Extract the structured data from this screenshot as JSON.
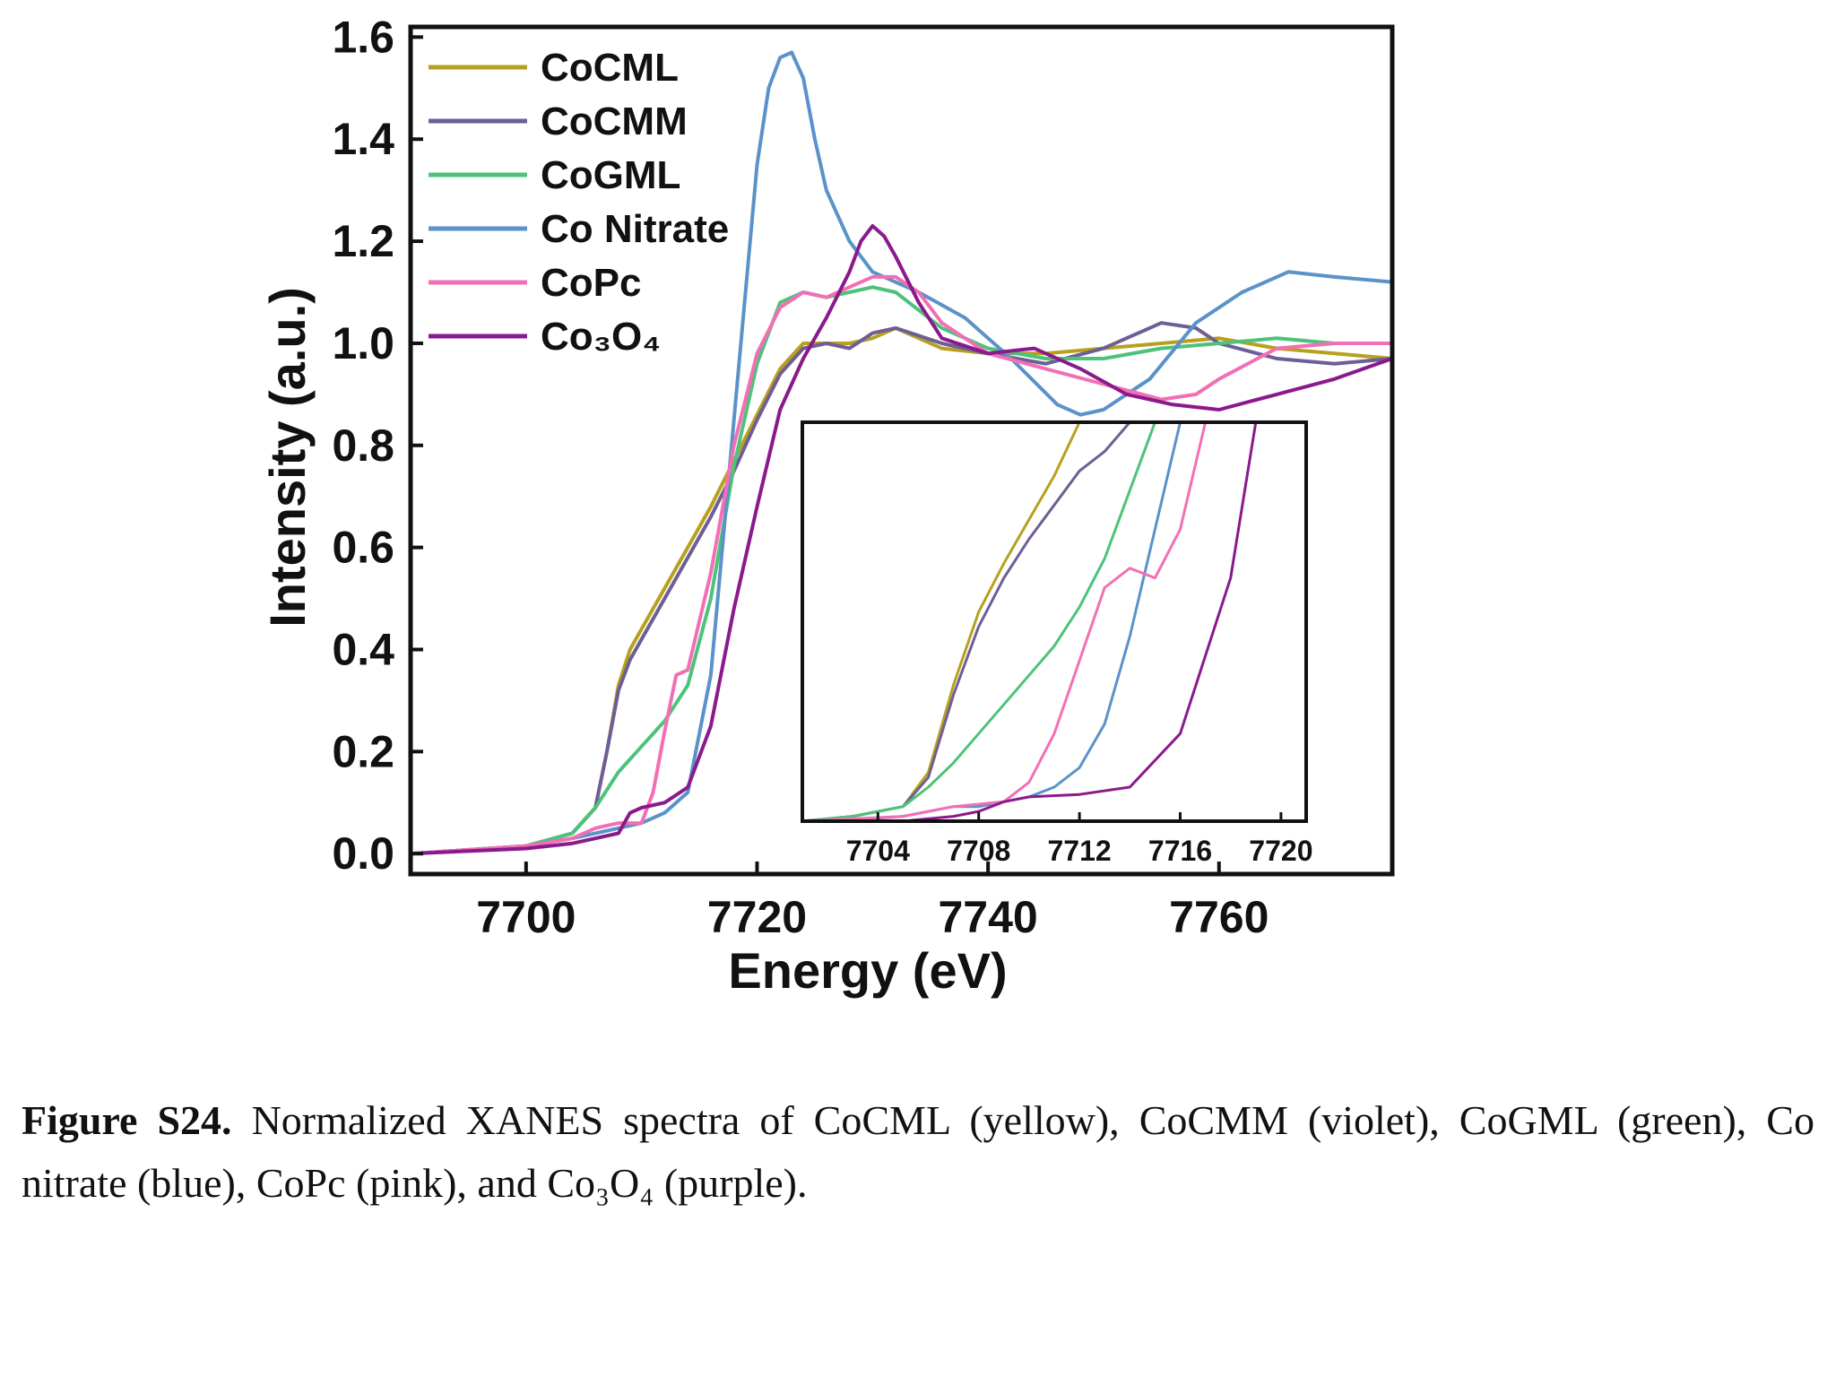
{
  "chart_data": {
    "type": "line",
    "xlabel": "Energy (eV)",
    "ylabel": "Intensity (a.u.)",
    "xlim": [
      7690,
      7775
    ],
    "ylim": [
      -0.04,
      1.62
    ],
    "x_ticks": [
      7700,
      7720,
      7740,
      7760
    ],
    "y_ticks": [
      0.0,
      0.2,
      0.4,
      0.6,
      0.8,
      1.0,
      1.2,
      1.4,
      1.6
    ],
    "grid": false,
    "legend_position": "top-left",
    "series": [
      {
        "name": "CoCML",
        "color": "#b8a01e",
        "x": [
          7690,
          7700,
          7704,
          7706,
          7707,
          7708,
          7709,
          7710,
          7712,
          7714,
          7716,
          7718,
          7720,
          7722,
          7724,
          7726,
          7728,
          7730,
          7732,
          7736,
          7740,
          7745,
          7750,
          7755,
          7760,
          7765,
          7770,
          7775
        ],
        "y": [
          0.0,
          0.015,
          0.04,
          0.09,
          0.2,
          0.33,
          0.4,
          0.44,
          0.52,
          0.6,
          0.68,
          0.77,
          0.86,
          0.95,
          1.0,
          1.0,
          1.0,
          1.01,
          1.03,
          0.99,
          0.98,
          0.98,
          0.99,
          1.0,
          1.01,
          0.99,
          0.98,
          0.97
        ]
      },
      {
        "name": "CoCMM",
        "color": "#6e5e96",
        "x": [
          7690,
          7700,
          7704,
          7706,
          7707,
          7708,
          7709,
          7710,
          7712,
          7714,
          7716,
          7718,
          7720,
          7722,
          7724,
          7726,
          7728,
          7730,
          7732,
          7736,
          7740,
          7745,
          7750,
          7755,
          7758,
          7760,
          7765,
          7770,
          7775
        ],
        "y": [
          0.0,
          0.015,
          0.04,
          0.09,
          0.2,
          0.32,
          0.38,
          0.42,
          0.5,
          0.58,
          0.66,
          0.75,
          0.85,
          0.94,
          0.99,
          1.0,
          0.99,
          1.02,
          1.03,
          1.0,
          0.98,
          0.96,
          0.99,
          1.04,
          1.03,
          1.0,
          0.97,
          0.96,
          0.97
        ]
      },
      {
        "name": "CoGML",
        "color": "#4dc27a",
        "x": [
          7690,
          7700,
          7704,
          7706,
          7708,
          7710,
          7712,
          7714,
          7716,
          7718,
          7720,
          7722,
          7724,
          7726,
          7728,
          7730,
          7732,
          7736,
          7740,
          7745,
          7750,
          7755,
          7760,
          7765,
          7770,
          7775
        ],
        "y": [
          0.0,
          0.015,
          0.04,
          0.09,
          0.16,
          0.21,
          0.26,
          0.33,
          0.5,
          0.76,
          0.96,
          1.08,
          1.1,
          1.09,
          1.1,
          1.11,
          1.1,
          1.03,
          0.99,
          0.97,
          0.97,
          0.99,
          1.0,
          1.01,
          1.0,
          1.0
        ]
      },
      {
        "name": "Co Nitrate",
        "color": "#5a92c9",
        "x": [
          7690,
          7700,
          7704,
          7708,
          7710,
          7712,
          7714,
          7716,
          7718,
          7720,
          7721,
          7722,
          7723,
          7724,
          7725,
          7726,
          7728,
          7730,
          7734,
          7738,
          7742,
          7746,
          7748,
          7750,
          7754,
          7758,
          7762,
          7766,
          7770,
          7775
        ],
        "y": [
          0.0,
          0.015,
          0.03,
          0.05,
          0.06,
          0.08,
          0.12,
          0.35,
          0.85,
          1.35,
          1.5,
          1.56,
          1.57,
          1.52,
          1.4,
          1.3,
          1.2,
          1.14,
          1.1,
          1.05,
          0.97,
          0.88,
          0.86,
          0.87,
          0.93,
          1.04,
          1.1,
          1.14,
          1.13,
          1.12
        ]
      },
      {
        "name": "CoPc",
        "color": "#f36fb5",
        "x": [
          7690,
          7700,
          7704,
          7706,
          7708,
          7710,
          7711,
          7712,
          7713,
          7714,
          7716,
          7718,
          7720,
          7722,
          7724,
          7726,
          7728,
          7730,
          7732,
          7734,
          7736,
          7740,
          7745,
          7750,
          7755,
          7758,
          7760,
          7765,
          7770,
          7775
        ],
        "y": [
          0.0,
          0.015,
          0.03,
          0.05,
          0.06,
          0.06,
          0.12,
          0.24,
          0.35,
          0.36,
          0.55,
          0.8,
          0.98,
          1.07,
          1.1,
          1.09,
          1.11,
          1.13,
          1.13,
          1.1,
          1.04,
          0.98,
          0.95,
          0.92,
          0.89,
          0.9,
          0.93,
          0.99,
          1.0,
          1.0
        ]
      },
      {
        "name": "Co₃O₄",
        "color": "#8a1a8c",
        "x": [
          7690,
          7700,
          7704,
          7708,
          7709,
          7710,
          7712,
          7714,
          7716,
          7718,
          7720,
          7722,
          7724,
          7726,
          7728,
          7729,
          7730,
          7731,
          7732,
          7734,
          7736,
          7740,
          7744,
          7748,
          7752,
          7756,
          7760,
          7765,
          7770,
          7775
        ],
        "y": [
          0.0,
          0.01,
          0.02,
          0.04,
          0.08,
          0.09,
          0.1,
          0.13,
          0.25,
          0.48,
          0.68,
          0.87,
          0.97,
          1.05,
          1.14,
          1.2,
          1.23,
          1.21,
          1.17,
          1.08,
          1.01,
          0.98,
          0.99,
          0.95,
          0.9,
          0.88,
          0.87,
          0.9,
          0.93,
          0.97
        ]
      }
    ],
    "inset": {
      "xlim": [
        7701,
        7721
      ],
      "ylim": [
        0.02,
        0.84
      ],
      "x_ticks": [
        7704,
        7708,
        7712,
        7716,
        7720
      ],
      "series": [
        {
          "name": "CoCML",
          "x": [
            7701,
            7703,
            7705,
            7706,
            7707,
            7708,
            7709,
            7710,
            7711,
            7712
          ],
          "y": [
            0.02,
            0.03,
            0.05,
            0.12,
            0.3,
            0.45,
            0.55,
            0.64,
            0.73,
            0.84
          ]
        },
        {
          "name": "CoCMM",
          "x": [
            7701,
            7703,
            7705,
            7706,
            7707,
            7708,
            7709,
            7710,
            7711,
            7712,
            7713,
            7714
          ],
          "y": [
            0.02,
            0.03,
            0.05,
            0.11,
            0.28,
            0.42,
            0.52,
            0.6,
            0.67,
            0.74,
            0.78,
            0.84
          ]
        },
        {
          "name": "CoGML",
          "x": [
            7701,
            7703,
            7705,
            7706,
            7707,
            7708,
            7709,
            7710,
            7711,
            7712,
            7713,
            7714,
            7715
          ],
          "y": [
            0.02,
            0.03,
            0.05,
            0.09,
            0.14,
            0.2,
            0.26,
            0.32,
            0.38,
            0.46,
            0.56,
            0.7,
            0.84
          ]
        },
        {
          "name": "Co Nitrate",
          "x": [
            7701,
            7705,
            7707,
            7708,
            7709,
            7710,
            7711,
            7712,
            7713,
            7714,
            7715,
            7716
          ],
          "y": [
            0.015,
            0.03,
            0.05,
            0.05,
            0.06,
            0.07,
            0.09,
            0.13,
            0.22,
            0.4,
            0.62,
            0.84
          ]
        },
        {
          "name": "CoPc",
          "x": [
            7701,
            7705,
            7707,
            7709,
            7710,
            7711,
            7712,
            7713,
            7714,
            7715,
            7716,
            7717
          ],
          "y": [
            0.02,
            0.03,
            0.05,
            0.06,
            0.1,
            0.2,
            0.35,
            0.5,
            0.54,
            0.52,
            0.62,
            0.84
          ]
        },
        {
          "name": "Co₃O₄",
          "x": [
            7701,
            7705,
            7707,
            7708,
            7709,
            7710,
            7712,
            7714,
            7716,
            7718,
            7719
          ],
          "y": [
            0.015,
            0.02,
            0.03,
            0.04,
            0.06,
            0.07,
            0.075,
            0.09,
            0.2,
            0.52,
            0.84
          ]
        }
      ]
    }
  },
  "caption": {
    "label": "Figure S24.",
    "text": "Normalized XANES spectra of CoCML (yellow), CoCMM (violet), CoGML (green), Co nitrate (blue), CoPc (pink), and Co₃O₄ (purple)."
  }
}
